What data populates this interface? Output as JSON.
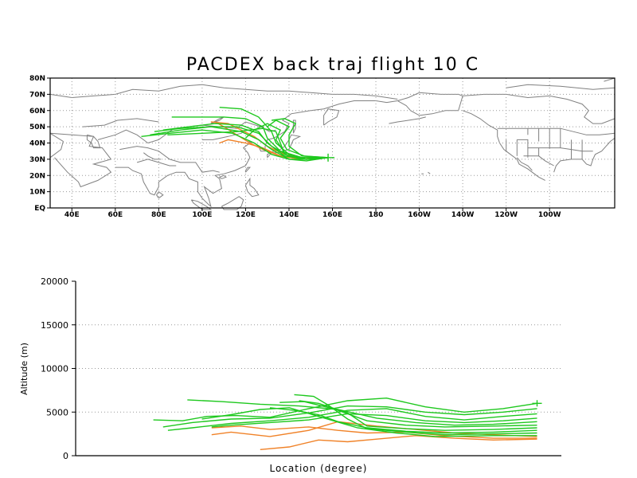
{
  "chart_data": [
    {
      "type": "line",
      "title": "PACDEX back traj flight 10 C",
      "x_ticks": [
        "40E",
        "60E",
        "80E",
        "100E",
        "120E",
        "140E",
        "160E",
        "180",
        "160W",
        "140W",
        "120W",
        "100W"
      ],
      "y_ticks": [
        "EQ",
        "10N",
        "20N",
        "30N",
        "40N",
        "50N",
        "60N",
        "70N",
        "80N"
      ],
      "xlim": [
        30,
        290
      ],
      "ylim": [
        0,
        80
      ],
      "grid": true,
      "colors": {
        "green": "#1ec81e",
        "orange": "#f08228",
        "coast": "#808080"
      },
      "series": [
        {
          "color": "green",
          "points": [
            [
              158,
              31
            ],
            [
              150,
              30
            ],
            [
              140,
              30
            ],
            [
              132,
              33
            ],
            [
              124,
              40
            ],
            [
              114,
              46
            ],
            [
              100,
              48
            ],
            [
              85,
              46
            ],
            [
              72,
              44
            ]
          ]
        },
        {
          "color": "green",
          "points": [
            [
              158,
              31
            ],
            [
              148,
              29
            ],
            [
              140,
              30
            ],
            [
              132,
              36
            ],
            [
              126,
              42
            ],
            [
              118,
              47
            ],
            [
              104,
              50
            ],
            [
              90,
              49
            ],
            [
              78,
              47
            ]
          ]
        },
        {
          "color": "green",
          "points": [
            [
              158,
              31
            ],
            [
              148,
              30
            ],
            [
              138,
              32
            ],
            [
              130,
              40
            ],
            [
              126,
              47
            ],
            [
              118,
              51
            ],
            [
              106,
              52
            ],
            [
              94,
              50
            ],
            [
              82,
              48
            ]
          ]
        },
        {
          "color": "green",
          "points": [
            [
              158,
              31
            ],
            [
              146,
              31
            ],
            [
              136,
              35
            ],
            [
              130,
              43
            ],
            [
              128,
              50
            ],
            [
              120,
              55
            ],
            [
              110,
              56
            ],
            [
              98,
              56
            ],
            [
              86,
              56
            ]
          ]
        },
        {
          "color": "green",
          "points": [
            [
              158,
              31
            ],
            [
              148,
              30
            ],
            [
              140,
              33
            ],
            [
              134,
              40
            ],
            [
              132,
              47
            ],
            [
              126,
              56
            ],
            [
              118,
              61
            ],
            [
              108,
              62
            ]
          ]
        },
        {
          "color": "green",
          "points": [
            [
              158,
              31
            ],
            [
              146,
              31
            ],
            [
              138,
              34
            ],
            [
              134,
              42
            ],
            [
              136,
              48
            ],
            [
              130,
              52
            ],
            [
              124,
              48
            ],
            [
              120,
              43
            ]
          ]
        },
        {
          "color": "green",
          "points": [
            [
              158,
              31
            ],
            [
              146,
              30
            ],
            [
              138,
              33
            ],
            [
              136,
              40
            ],
            [
              134,
              47
            ],
            [
              128,
              49
            ],
            [
              116,
              47
            ],
            [
              100,
              46
            ],
            [
              84,
              45
            ]
          ]
        },
        {
          "color": "green",
          "points": [
            [
              158,
              31
            ],
            [
              147,
              32
            ],
            [
              139,
              36
            ],
            [
              136,
              43
            ],
            [
              140,
              50
            ],
            [
              134,
              54
            ],
            [
              130,
              50
            ]
          ]
        },
        {
          "color": "green",
          "points": [
            [
              158,
              31
            ],
            [
              146,
              32
            ],
            [
              140,
              38
            ],
            [
              140,
              45
            ],
            [
              143,
              52
            ],
            [
              138,
              55
            ],
            [
              132,
              54
            ]
          ]
        },
        {
          "color": "green",
          "points": [
            [
              158,
              31
            ],
            [
              148,
              30
            ],
            [
              140,
              32
            ],
            [
              132,
              38
            ],
            [
              126,
              46
            ],
            [
              116,
              50
            ],
            [
              104,
              50
            ],
            [
              90,
              48
            ],
            [
              76,
              45
            ]
          ]
        },
        {
          "color": "orange",
          "points": [
            [
              158,
              31
            ],
            [
              146,
              30
            ],
            [
              136,
              32
            ],
            [
              128,
              36
            ],
            [
              122,
              40
            ],
            [
              116,
              45
            ],
            [
              110,
              50
            ],
            [
              106,
              53
            ]
          ]
        },
        {
          "color": "orange",
          "points": [
            [
              158,
              31
            ],
            [
              146,
              30
            ],
            [
              136,
              32
            ],
            [
              128,
              37
            ],
            [
              120,
              40
            ],
            [
              112,
              42
            ],
            [
              108,
              40
            ]
          ]
        },
        {
          "color": "orange",
          "points": [
            [
              158,
              31
            ],
            [
              146,
              31
            ],
            [
              138,
              33
            ],
            [
              130,
              38
            ],
            [
              124,
              44
            ],
            [
              118,
              48
            ],
            [
              112,
              52
            ],
            [
              104,
              53
            ]
          ]
        }
      ]
    },
    {
      "type": "line",
      "xlabel": "Location (degree)",
      "ylabel": "Altitude (m)",
      "y_ticks": [
        "0",
        "5000",
        "10000",
        "15000",
        "20000"
      ],
      "ylim": [
        0,
        20000
      ],
      "xlim": [
        0,
        100
      ],
      "grid": true,
      "series": [
        {
          "color": "green",
          "points": [
            [
              95,
              6000
            ],
            [
              88,
              5400
            ],
            [
              80,
              5000
            ],
            [
              72,
              5600
            ],
            [
              64,
              6600
            ],
            [
              56,
              6300
            ],
            [
              48,
              5400
            ],
            [
              40,
              4400
            ],
            [
              33,
              4600
            ],
            [
              27,
              4500
            ],
            [
              22,
              4000
            ],
            [
              16,
              4100
            ]
          ]
        },
        {
          "color": "green",
          "points": [
            [
              95,
              5400
            ],
            [
              88,
              5000
            ],
            [
              80,
              4700
            ],
            [
              72,
              5000
            ],
            [
              64,
              5600
            ],
            [
              56,
              5700
            ],
            [
              48,
              4900
            ],
            [
              40,
              4300
            ],
            [
              32,
              4200
            ],
            [
              24,
              3800
            ],
            [
              18,
              3300
            ]
          ]
        },
        {
          "color": "green",
          "points": [
            [
              95,
              4800
            ],
            [
              88,
              4500
            ],
            [
              80,
              4100
            ],
            [
              72,
              4500
            ],
            [
              64,
              5400
            ],
            [
              56,
              5200
            ],
            [
              48,
              4400
            ],
            [
              40,
              4000
            ],
            [
              32,
              3700
            ],
            [
              24,
              3200
            ],
            [
              19,
              2900
            ]
          ]
        },
        {
          "color": "green",
          "points": [
            [
              95,
              4300
            ],
            [
              88,
              4000
            ],
            [
              80,
              3800
            ],
            [
              72,
              4000
            ],
            [
              64,
              4600
            ],
            [
              56,
              4800
            ],
            [
              48,
              4100
            ],
            [
              40,
              3800
            ],
            [
              32,
              3500
            ],
            [
              28,
              3300
            ]
          ]
        },
        {
          "color": "green",
          "points": [
            [
              95,
              3900
            ],
            [
              86,
              3600
            ],
            [
              78,
              3500
            ],
            [
              70,
              3800
            ],
            [
              62,
              4300
            ],
            [
              54,
              5300
            ],
            [
              46,
              5700
            ],
            [
              38,
              5900
            ],
            [
              30,
              6200
            ],
            [
              23,
              6400
            ]
          ]
        },
        {
          "color": "green",
          "points": [
            [
              95,
              3500
            ],
            [
              86,
              3400
            ],
            [
              76,
              3300
            ],
            [
              68,
              3500
            ],
            [
              60,
              4000
            ],
            [
              53,
              5400
            ],
            [
              47,
              6200
            ],
            [
              42,
              6100
            ]
          ]
        },
        {
          "color": "green",
          "points": [
            [
              95,
              3200
            ],
            [
              86,
              3000
            ],
            [
              76,
              2900
            ],
            [
              68,
              3100
            ],
            [
              60,
              3400
            ],
            [
              56,
              4900
            ],
            [
              50,
              6000
            ],
            [
              46,
              6300
            ]
          ]
        },
        {
          "color": "green",
          "points": [
            [
              95,
              2900
            ],
            [
              86,
              2700
            ],
            [
              76,
              2600
            ],
            [
              68,
              2800
            ],
            [
              60,
              3200
            ],
            [
              54,
              3900
            ],
            [
              50,
              4700
            ],
            [
              45,
              5200
            ],
            [
              40,
              5500
            ]
          ]
        },
        {
          "color": "green",
          "points": [
            [
              95,
              2600
            ],
            [
              86,
              2500
            ],
            [
              76,
              2400
            ],
            [
              68,
              2700
            ],
            [
              60,
              3100
            ],
            [
              56,
              4200
            ],
            [
              52,
              5800
            ],
            [
              49,
              6800
            ],
            [
              45,
              7000
            ]
          ]
        },
        {
          "color": "green",
          "points": [
            [
              95,
              2300
            ],
            [
              86,
              2300
            ],
            [
              74,
              2200
            ],
            [
              66,
              2600
            ],
            [
              58,
              3200
            ],
            [
              50,
              4500
            ],
            [
              44,
              5500
            ],
            [
              38,
              5300
            ],
            [
              32,
              4700
            ],
            [
              26,
              4200
            ]
          ]
        },
        {
          "color": "orange",
          "points": [
            [
              95,
              2000
            ],
            [
              86,
              2000
            ],
            [
              76,
              2300
            ],
            [
              68,
              2700
            ],
            [
              60,
              2600
            ],
            [
              54,
              2900
            ],
            [
              48,
              3300
            ],
            [
              40,
              3000
            ],
            [
              34,
              3400
            ],
            [
              28,
              3200
            ]
          ]
        },
        {
          "color": "orange",
          "points": [
            [
              95,
              1900
            ],
            [
              86,
              1800
            ],
            [
              78,
              2000
            ],
            [
              70,
              2300
            ],
            [
              62,
              1900
            ],
            [
              56,
              1600
            ],
            [
              50,
              1800
            ],
            [
              44,
              1000
            ],
            [
              38,
              700
            ]
          ]
        },
        {
          "color": "orange",
          "points": [
            [
              95,
              2200
            ],
            [
              86,
              2400
            ],
            [
              78,
              2600
            ],
            [
              70,
              3000
            ],
            [
              62,
              3400
            ],
            [
              54,
              3900
            ],
            [
              48,
              2900
            ],
            [
              40,
              2200
            ],
            [
              32,
              2700
            ],
            [
              28,
              2400
            ]
          ]
        }
      ]
    }
  ]
}
